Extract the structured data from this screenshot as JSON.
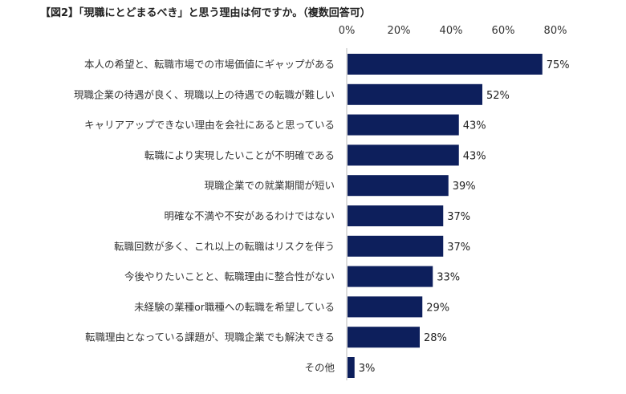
{
  "chart_data": {
    "type": "bar",
    "orientation": "horizontal",
    "title": "【図2】「現職にとどまるべき」と思う理由は何ですか。（複数回答可）",
    "categories": [
      "本人の希望と、転職市場での市場価値にギャップがある",
      "現職企業の待遇が良く、現職以上の待遇での転職が難しい",
      "キャリアアップできない理由を会社にあると思っている",
      "転職により実現したいことが不明確である",
      "現職企業での就業期間が短い",
      "明確な不満や不安があるわけではない",
      "転職回数が多く、これ以上の転職はリスクを伴う",
      "今後やりたいことと、転職理由に整合性がない",
      "未経験の業種or職種への転職を希望している",
      "転職理由となっている課題が、現職企業でも解決できる",
      "その他"
    ],
    "values": [
      75,
      52,
      43,
      43,
      39,
      37,
      37,
      33,
      29,
      28,
      3
    ],
    "value_labels": [
      "75%",
      "52%",
      "43%",
      "43%",
      "39%",
      "37%",
      "37%",
      "33%",
      "29%",
      "28%",
      "3%"
    ],
    "xlim": [
      0,
      80
    ],
    "x_ticks": [
      "0%",
      "20%",
      "40%",
      "60%",
      "80%"
    ],
    "axis_position": "top",
    "grid": false,
    "bar_color": "#0d1f5c"
  }
}
